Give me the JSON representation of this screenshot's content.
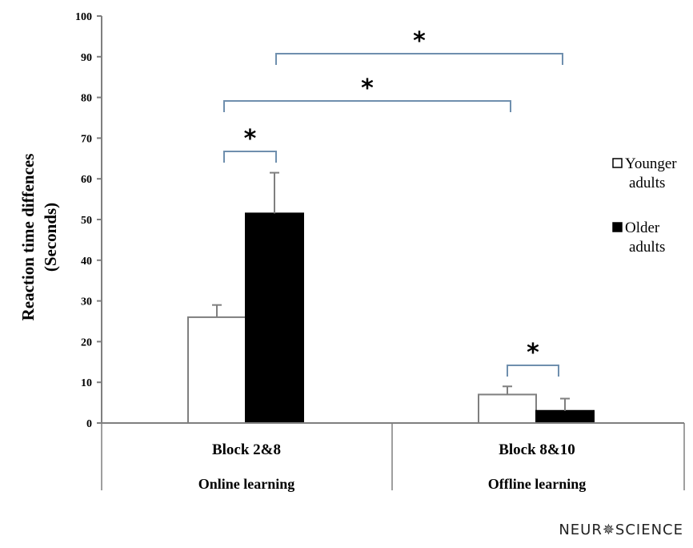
{
  "chart_data": {
    "type": "bar",
    "ylabel_line1": "Reaction time diffences",
    "ylabel_line2": "(Seconds)",
    "ylim": [
      0,
      100
    ],
    "yticks": [
      0,
      10,
      20,
      30,
      40,
      50,
      60,
      70,
      80,
      90,
      100
    ],
    "categories": [
      "Block 2&8",
      "Block 8&10"
    ],
    "groups": [
      "Online learning",
      "Offline learning"
    ],
    "series": [
      {
        "name": "Younger adults",
        "name_line1": "Younger",
        "name_line2": "adults",
        "color": "#ffffff",
        "values": [
          26,
          7
        ],
        "errors": [
          3,
          2
        ]
      },
      {
        "name": "Older adults",
        "name_line1": "Older",
        "name_line2": "adults",
        "color": "#000000",
        "values": [
          51.5,
          3
        ],
        "errors": [
          10,
          3
        ]
      }
    ],
    "significance": [
      {
        "label": "*",
        "from": [
          0,
          0
        ],
        "to": [
          0,
          1
        ]
      },
      {
        "label": "*",
        "from": [
          0,
          0
        ],
        "to": [
          1,
          0
        ]
      },
      {
        "label": "*",
        "from": [
          0,
          1
        ],
        "to": [
          1,
          1
        ]
      },
      {
        "label": "*",
        "from": [
          1,
          0
        ],
        "to": [
          1,
          1
        ]
      }
    ],
    "legend_position": "right",
    "grid": false
  },
  "brand": "NEUR✵SCIENCE",
  "colors": {
    "bracket": "#6f8fae",
    "axis": "#7f7f7f"
  }
}
